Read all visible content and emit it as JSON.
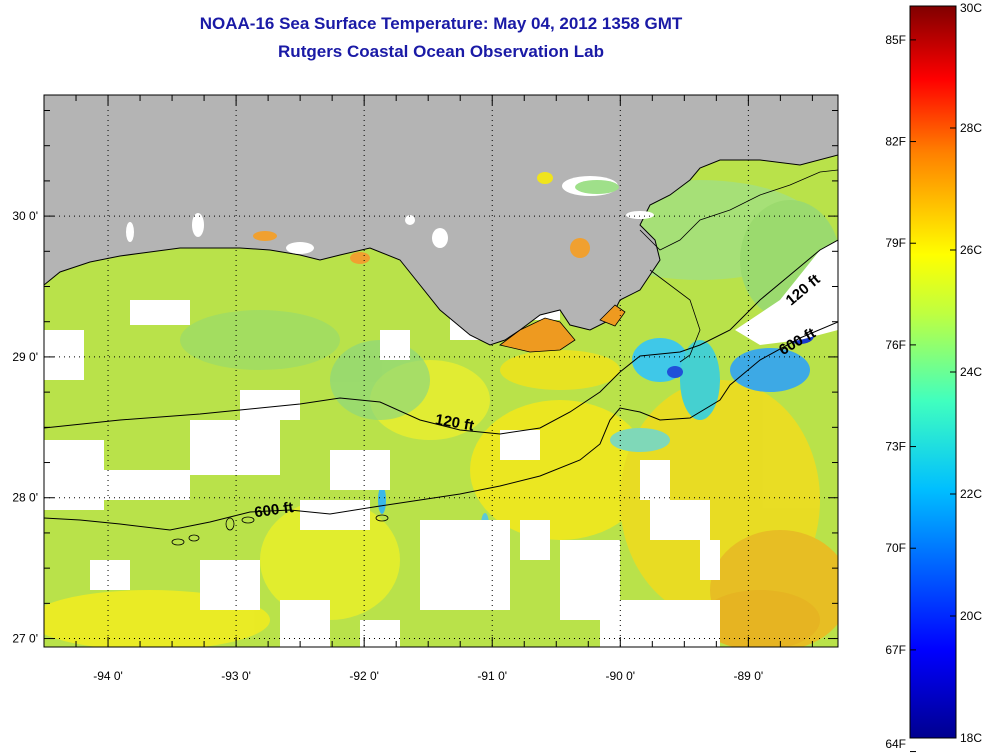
{
  "title": {
    "line1": "NOAA-16 Sea Surface Temperature:  May 04, 2012 1358 GMT",
    "line2": "Rutgers Coastal Ocean Observation Lab"
  },
  "map": {
    "lon_range": [
      -94.5,
      -88.3
    ],
    "lat_range": [
      26.94,
      30.86
    ],
    "lon_ticks": [
      {
        "value": -94,
        "label": "-94 0'"
      },
      {
        "value": -93,
        "label": "-93 0'"
      },
      {
        "value": -92,
        "label": "-92 0'"
      },
      {
        "value": -91,
        "label": "-91 0'"
      },
      {
        "value": -90,
        "label": "-90 0'"
      },
      {
        "value": -89,
        "label": "-89 0'"
      }
    ],
    "lat_ticks": [
      {
        "value": 27,
        "label": "27 0'"
      },
      {
        "value": 28,
        "label": "28 0'"
      },
      {
        "value": 29,
        "label": "29 0'"
      },
      {
        "value": 30,
        "label": "30 0'"
      }
    ],
    "contours": [
      {
        "label": "120 ft",
        "label_lon": -91.3,
        "label_lat": 28.5
      },
      {
        "label": "120 ft",
        "label_lon": -88.55,
        "label_lat": 29.45
      },
      {
        "label": "600 ft",
        "label_lon": -92.7,
        "label_lat": 27.88
      },
      {
        "label": "600 ft",
        "label_lon": -88.6,
        "label_lat": 29.08
      }
    ],
    "colors": {
      "land": "#b4b4b4",
      "no_data": "#ffffff",
      "water_main": "#b9e24a"
    }
  },
  "colorbar": {
    "min_c": 18,
    "max_c": 30,
    "f_ticks": [
      {
        "value": 64,
        "label": "64F"
      },
      {
        "value": 67,
        "label": "67F"
      },
      {
        "value": 70,
        "label": "70F"
      },
      {
        "value": 73,
        "label": "73F"
      },
      {
        "value": 76,
        "label": "76F"
      },
      {
        "value": 79,
        "label": "79F"
      },
      {
        "value": 82,
        "label": "82F"
      },
      {
        "value": 85,
        "label": "85F"
      }
    ],
    "c_ticks": [
      {
        "value": 18,
        "label": "18C"
      },
      {
        "value": 20,
        "label": "20C"
      },
      {
        "value": 22,
        "label": "22C"
      },
      {
        "value": 24,
        "label": "24C"
      },
      {
        "value": 26,
        "label": "26C"
      },
      {
        "value": 28,
        "label": "28C"
      },
      {
        "value": 30,
        "label": "30C"
      }
    ]
  }
}
